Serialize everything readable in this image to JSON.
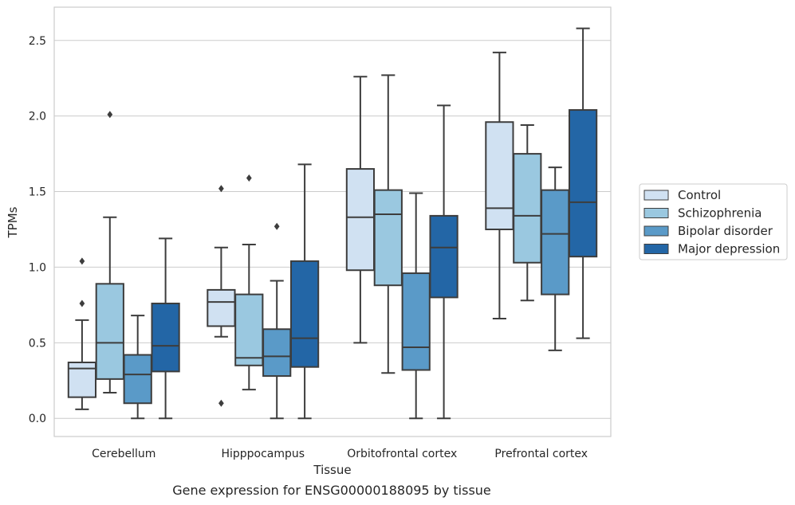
{
  "caption": "Gene expression for ENSG00000188095 by tissue",
  "chart_data": {
    "type": "box",
    "xlabel": "Tissue",
    "ylabel": "TPMs",
    "ylim": [
      -0.12,
      2.72
    ],
    "yticks": [
      0.0,
      0.5,
      1.0,
      1.5,
      2.0,
      2.5
    ],
    "ytick_labels": [
      "0.0",
      "0.5",
      "1.0",
      "1.5",
      "2.0",
      "2.5"
    ],
    "grid": "horizontal",
    "legend_position": "right",
    "categories": [
      "Cerebellum",
      "Hipppocampus",
      "Orbitofrontal cortex",
      "Prefrontal cortex"
    ],
    "series": [
      {
        "name": "Control",
        "color": "#d0e1f2",
        "boxes": [
          {
            "whislo": 0.06,
            "q1": 0.14,
            "med": 0.33,
            "q3": 0.37,
            "whishi": 0.65,
            "fliers": [
              0.76,
              1.04
            ]
          },
          {
            "whislo": 0.54,
            "q1": 0.61,
            "med": 0.77,
            "q3": 0.85,
            "whishi": 1.13,
            "fliers": [
              0.1,
              1.52
            ]
          },
          {
            "whislo": 0.5,
            "q1": 0.98,
            "med": 1.33,
            "q3": 1.65,
            "whishi": 2.26,
            "fliers": []
          },
          {
            "whislo": 0.66,
            "q1": 1.25,
            "med": 1.39,
            "q3": 1.96,
            "whishi": 2.42,
            "fliers": []
          }
        ]
      },
      {
        "name": "Schizophrenia",
        "color": "#9ac8e0",
        "boxes": [
          {
            "whislo": 0.17,
            "q1": 0.26,
            "med": 0.5,
            "q3": 0.89,
            "whishi": 1.33,
            "fliers": [
              2.01
            ]
          },
          {
            "whislo": 0.19,
            "q1": 0.35,
            "med": 0.4,
            "q3": 0.82,
            "whishi": 1.15,
            "fliers": [
              1.59
            ]
          },
          {
            "whislo": 0.3,
            "q1": 0.88,
            "med": 1.35,
            "q3": 1.51,
            "whishi": 2.27,
            "fliers": []
          },
          {
            "whislo": 0.78,
            "q1": 1.03,
            "med": 1.34,
            "q3": 1.75,
            "whishi": 1.94,
            "fliers": []
          }
        ]
      },
      {
        "name": "Bipolar disorder",
        "color": "#5a9ac8",
        "boxes": [
          {
            "whislo": 0.0,
            "q1": 0.1,
            "med": 0.29,
            "q3": 0.42,
            "whishi": 0.68,
            "fliers": []
          },
          {
            "whislo": 0.0,
            "q1": 0.28,
            "med": 0.41,
            "q3": 0.59,
            "whishi": 0.91,
            "fliers": [
              1.27
            ]
          },
          {
            "whislo": 0.0,
            "q1": 0.32,
            "med": 0.47,
            "q3": 0.96,
            "whishi": 1.49,
            "fliers": []
          },
          {
            "whislo": 0.45,
            "q1": 0.82,
            "med": 1.22,
            "q3": 1.51,
            "whishi": 1.66,
            "fliers": []
          }
        ]
      },
      {
        "name": "Major depression",
        "color": "#2366a6",
        "boxes": [
          {
            "whislo": 0.0,
            "q1": 0.31,
            "med": 0.48,
            "q3": 0.76,
            "whishi": 1.19,
            "fliers": []
          },
          {
            "whislo": 0.0,
            "q1": 0.34,
            "med": 0.53,
            "q3": 1.04,
            "whishi": 1.68,
            "fliers": []
          },
          {
            "whislo": 0.0,
            "q1": 0.8,
            "med": 1.13,
            "q3": 1.34,
            "whishi": 2.07,
            "fliers": []
          },
          {
            "whislo": 0.53,
            "q1": 1.07,
            "med": 1.43,
            "q3": 2.04,
            "whishi": 2.58,
            "fliers": []
          }
        ]
      }
    ]
  }
}
